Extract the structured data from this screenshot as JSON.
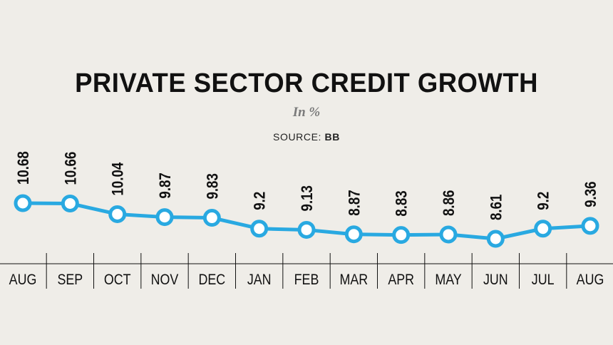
{
  "chart_data": {
    "type": "line",
    "title": "PRIVATE SECTOR CREDIT GROWTH",
    "subtitle": "In %",
    "source_label": "SOURCE:",
    "source_value": "BB",
    "categories": [
      "AUG",
      "SEP",
      "OCT",
      "NOV",
      "DEC",
      "JAN",
      "FEB",
      "MAR",
      "APR",
      "MAY",
      "JUN",
      "JUL",
      "AUG"
    ],
    "series": [
      {
        "values": [
          10.68,
          10.66,
          10.04,
          9.87,
          9.83,
          9.2,
          9.13,
          8.87,
          8.83,
          8.86,
          8.61,
          9.2,
          9.36
        ],
        "labels": [
          "10.68",
          "10.66",
          "10.04",
          "9.87",
          "9.83",
          "9.2",
          "9.13",
          "8.87",
          "8.83",
          "8.86",
          "8.61",
          "9.2",
          "9.36"
        ]
      }
    ],
    "colors": {
      "line": "#29a9e1",
      "marker_fill": "#ffffff",
      "label": "#111111",
      "background": "#efede8",
      "axis": "#111111"
    },
    "grid": false,
    "legend": "none"
  }
}
